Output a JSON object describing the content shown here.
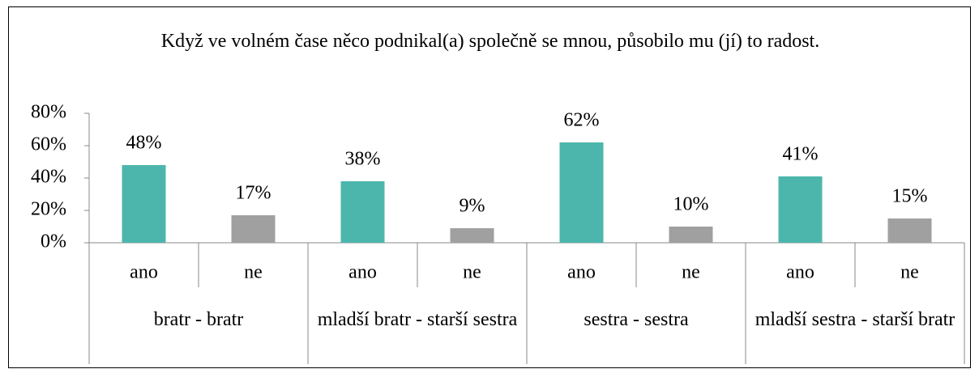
{
  "chart_data": {
    "type": "bar",
    "title": "Když ve volném čase něco podnikal(a) společně se mnou, působilo mu (jí) to radost.",
    "groups": [
      "bratr - bratr",
      "mladší bratr - starší sestra",
      "sestra - sestra",
      "mladší sestra - starší bratr"
    ],
    "categories": [
      "ano",
      "ne",
      "ano",
      "ne",
      "ano",
      "ne",
      "ano",
      "ne"
    ],
    "values": [
      48,
      17,
      38,
      9,
      62,
      10,
      41,
      15
    ],
    "value_labels": [
      "48%",
      "17%",
      "38%",
      "9%",
      "62%",
      "10%",
      "41%",
      "15%"
    ],
    "bar_colors": [
      "#4db6ac",
      "#a0a0a0",
      "#4db6ac",
      "#a0a0a0",
      "#4db6ac",
      "#a0a0a0",
      "#4db6ac",
      "#a0a0a0"
    ],
    "ylim": [
      0,
      80
    ],
    "yticks": [
      {
        "value": 0,
        "label": "0%"
      },
      {
        "value": 20,
        "label": "20%"
      },
      {
        "value": 40,
        "label": "40%"
      },
      {
        "value": 60,
        "label": "60%"
      },
      {
        "value": 80,
        "label": "80%"
      }
    ]
  }
}
